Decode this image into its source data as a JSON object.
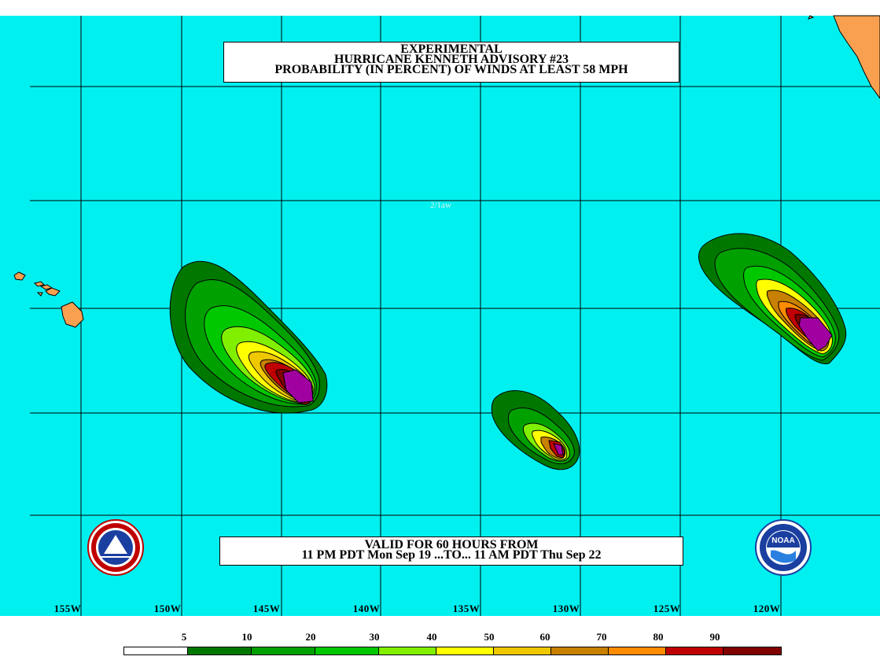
{
  "title": {
    "line1": "EXPERIMENTAL",
    "line2": "HURRICANE KENNETH ADVISORY #23",
    "line3": "PROBABILITY (IN PERCENT) OF WINDS AT LEAST 58 MPH"
  },
  "valid": {
    "line1": "VALID FOR 60 HOURS FROM",
    "line2": "11 PM PDT Mon Sep 19 ...TO... 11 AM PDT Thu Sep 22"
  },
  "stamp": "2/1aw",
  "longitudes": [
    "155W",
    "150W",
    "145W",
    "140W",
    "135W",
    "130W",
    "125W",
    "120W"
  ],
  "legend": {
    "labels": [
      "5",
      "10",
      "20",
      "30",
      "40",
      "50",
      "60",
      "70",
      "80",
      "90"
    ],
    "colors": [
      "#ffffff",
      "#007800",
      "#00a000",
      "#00c800",
      "#80f000",
      "#ffff00",
      "#f0c800",
      "#c88000",
      "#ff8c00",
      "#c00000",
      "#800000",
      "#a000a0"
    ]
  },
  "colors": {
    "ocean": "#00f0f0",
    "land": "#f8a050",
    "grid": "#000000"
  },
  "icons": {
    "left_logo": "nws-logo-icon",
    "right_logo": "noaa-logo-icon"
  }
}
